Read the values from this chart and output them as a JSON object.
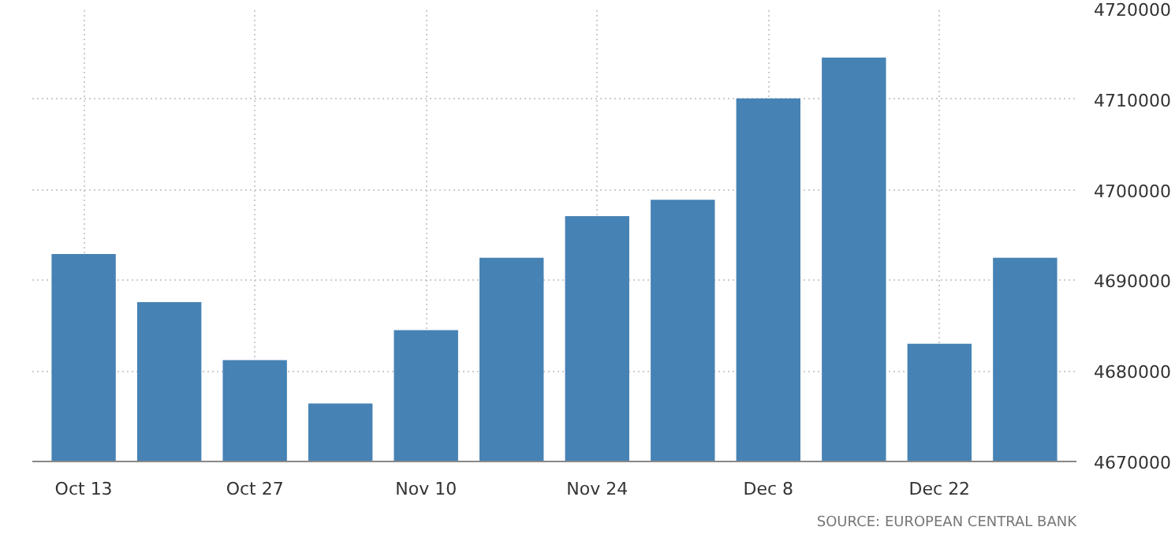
{
  "chart_data": {
    "type": "bar",
    "categories": [
      "Oct 13",
      null,
      "Oct 27",
      null,
      "Nov 10",
      null,
      "Nov 24",
      null,
      "Dec 8",
      null,
      "Dec 22",
      null
    ],
    "values": [
      4692900,
      4687600,
      4681200,
      4676400,
      4684500,
      4692500,
      4697100,
      4698900,
      4710100,
      4714600,
      4683000,
      4692500
    ],
    "color": "#4682b4",
    "ylim": [
      4670000,
      4720000
    ],
    "yticks": [
      4670000,
      4680000,
      4690000,
      4700000,
      4710000,
      4720000
    ],
    "grid": true,
    "annotations": [
      "SOURCE: EUROPEAN CENTRAL BANK"
    ]
  }
}
